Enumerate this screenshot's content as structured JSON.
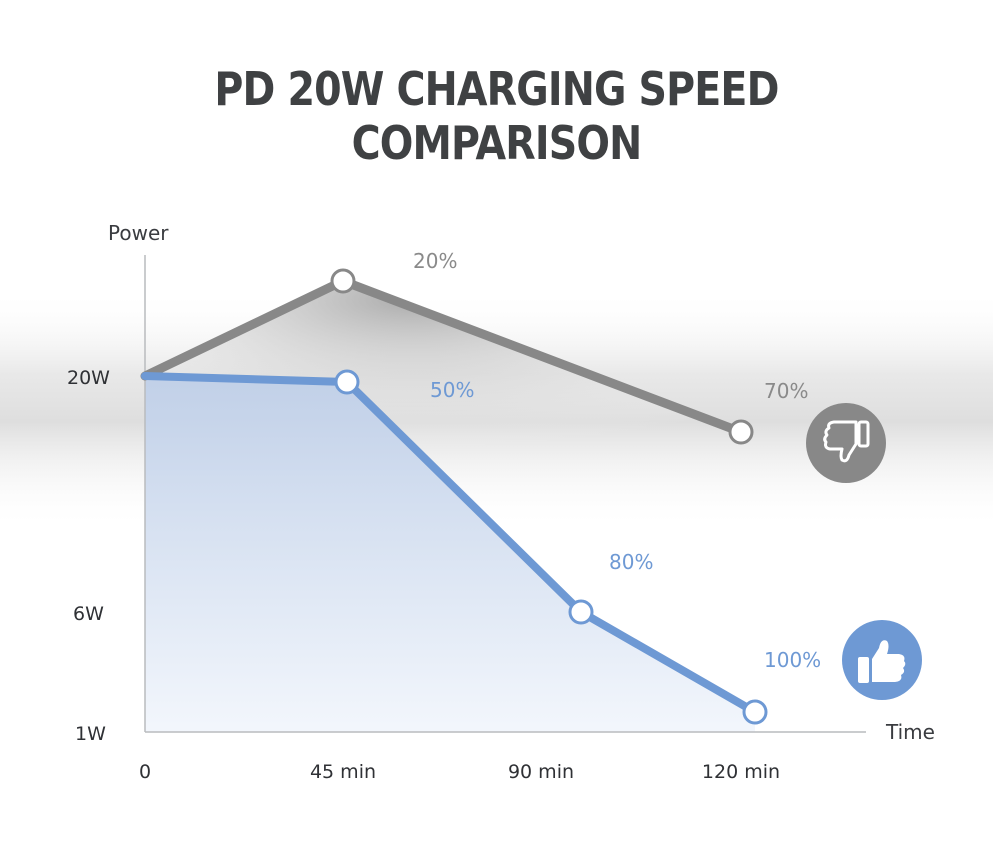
{
  "title": "PD 20W CHARGING SPEED COMPARISON",
  "chart_data": {
    "type": "line",
    "xlabel": "Time",
    "ylabel": "Power",
    "x_ticks": [
      "0",
      "45 min",
      "90 min",
      "120 min"
    ],
    "y_ticks": [
      "20W",
      "6W",
      "1W"
    ],
    "series": [
      {
        "color": "#888888",
        "points": [
          {
            "x": "0",
            "y": "20W",
            "label": ""
          },
          {
            "x": "45 min",
            "y": "above 20W",
            "label": "20%"
          },
          {
            "x": "120 min",
            "y": "between 20W and 6W",
            "label": "70%"
          }
        ]
      },
      {
        "color": "#6e99d4",
        "points": [
          {
            "x": "0",
            "y": "20W",
            "label": ""
          },
          {
            "x": "45 min",
            "y": "20W",
            "label": "50%"
          },
          {
            "x": "90 min",
            "y": "6W",
            "label": "80%"
          },
          {
            "x": "120 min",
            "y": "1W",
            "label": "100%"
          }
        ]
      }
    ],
    "badges": [
      {
        "icon": "thumbs-down-icon",
        "series": 0,
        "color": "#888888"
      },
      {
        "icon": "thumbs-up-icon",
        "series": 1,
        "color": "#6e99d4"
      }
    ]
  }
}
